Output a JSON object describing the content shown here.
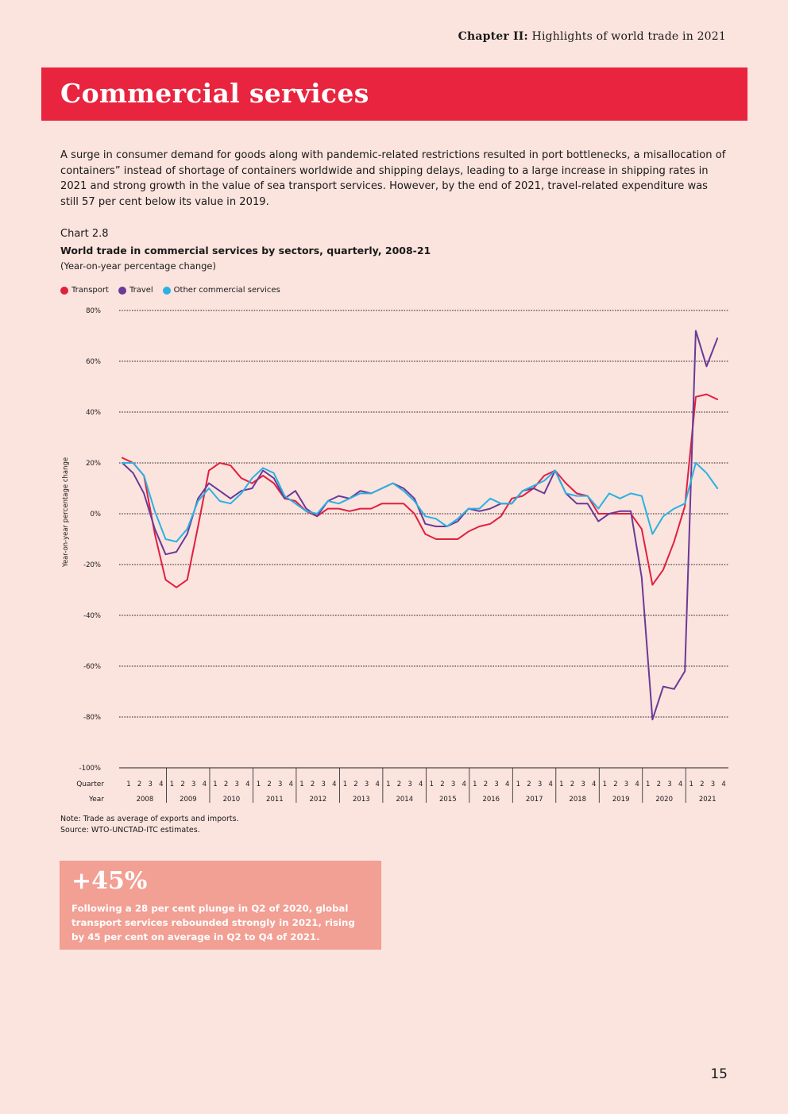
{
  "header": {
    "chapter_label": "Chapter II:",
    "chapter_title": "Highlights of world trade in 2021"
  },
  "section_title": "Commercial services",
  "intro_text": "A surge in consumer demand for goods along with pandemic-related restrictions resulted in port bottlenecks, a misallocation of containers” instead of shortage of containers worldwide and shipping delays, leading to a large increase in shipping rates in 2021 and strong growth in the value of sea transport services. However, by the end of 2021, travel-related expenditure was still 57 per cent below its value in 2019.",
  "chart_number": "Chart 2.8",
  "colors": {
    "transport": "#e0203f",
    "travel": "#6a3a96",
    "other": "#29b2e2"
  },
  "chart_data": {
    "type": "line",
    "title": "World trade in commercial services by sectors, quarterly, 2008-21",
    "subtitle": "(Year-on-year percentage change)",
    "ylabel": "Year-on-year percentage change",
    "ylim": [
      -100,
      80
    ],
    "yticks": [
      80,
      60,
      40,
      20,
      0,
      -20,
      -40,
      -60,
      -80,
      -100
    ],
    "ytick_labels": [
      "80%",
      "60%",
      "40%",
      "20%",
      "0%",
      "-20%",
      "-40%",
      "-60%",
      "-80%",
      "-100%"
    ],
    "quarter_axis_label": "Quarter",
    "year_axis_label": "Year",
    "years": [
      "2008",
      "2009",
      "2010",
      "2011",
      "2012",
      "2013",
      "2014",
      "2015",
      "2016",
      "2017",
      "2018",
      "2019",
      "2020",
      "2021"
    ],
    "quarters": [
      "1",
      "2",
      "3",
      "4"
    ],
    "grid": true,
    "series": [
      {
        "name": "Transport",
        "values": [
          22,
          20,
          15,
          -8,
          -26,
          -29,
          -26,
          -5,
          17,
          20,
          19,
          14,
          12,
          15,
          12,
          6,
          5,
          1,
          -1,
          2,
          2,
          1,
          2,
          2,
          4,
          4,
          4,
          0,
          -8,
          -10,
          -10,
          -10,
          -7,
          -5,
          -4,
          -1,
          6,
          7,
          10,
          15,
          17,
          12,
          8,
          7,
          0,
          0,
          0,
          0,
          -6,
          -28,
          -22,
          -11,
          3,
          46,
          47,
          45
        ]
      },
      {
        "name": "Travel",
        "values": [
          20,
          16,
          8,
          -6,
          -16,
          -15,
          -8,
          6,
          12,
          9,
          6,
          9,
          10,
          17,
          14,
          6,
          9,
          2,
          -1,
          5,
          7,
          6,
          9,
          8,
          10,
          12,
          10,
          6,
          -4,
          -5,
          -5,
          -3,
          2,
          1,
          2,
          4,
          4,
          9,
          10,
          8,
          17,
          8,
          4,
          4,
          -3,
          0,
          1,
          1,
          -25,
          -81,
          -68,
          -69,
          -62,
          72,
          58,
          69
        ]
      },
      {
        "name": "Other commercial services",
        "values": [
          20,
          20,
          15,
          1,
          -10,
          -11,
          -6,
          5,
          10,
          5,
          4,
          8,
          14,
          18,
          16,
          7,
          4,
          1,
          0,
          5,
          4,
          6,
          8,
          8,
          10,
          12,
          9,
          5,
          -1,
          -2,
          -5,
          -2,
          2,
          2,
          6,
          4,
          4,
          9,
          11,
          13,
          17,
          8,
          7,
          7,
          2,
          8,
          6,
          8,
          7,
          -8,
          -1,
          2,
          4,
          20,
          16,
          10
        ]
      }
    ]
  },
  "notes": {
    "note": "Note: Trade as average of exports and imports.",
    "source": "Source: WTO-UNCTAD-ITC estimates."
  },
  "callout": {
    "value": "+45%",
    "text": "Following a 28 per cent plunge in Q2 of 2020, global transport services rebounded strongly in 2021, rising by 45 per cent on average in Q2 to Q4 of 2021."
  },
  "page_number": "15"
}
